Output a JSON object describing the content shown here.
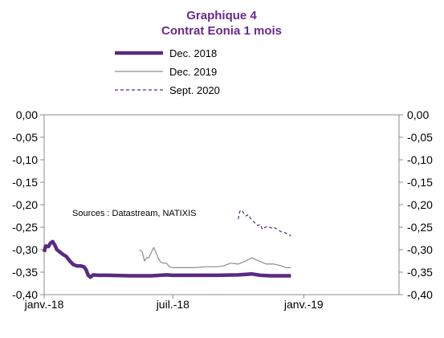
{
  "chart_data": {
    "type": "line",
    "title": "Graphique 4",
    "subtitle": "Contrat Eonia 1 mois",
    "source": "Sources : Datastream,  NATIXIS",
    "title_color": "#6a2a8c",
    "ylim": [
      -0.4,
      0.0
    ],
    "y_ticks": [
      "0,00",
      "-0,05",
      "-0,10",
      "-0,15",
      "-0,20",
      "-0,25",
      "-0,30",
      "-0,35",
      "-0,40"
    ],
    "y_tick_values": [
      0.0,
      -0.05,
      -0.1,
      -0.15,
      -0.2,
      -0.25,
      -0.3,
      -0.35,
      -0.4
    ],
    "xlim": [
      "2018-01-01",
      "2019-05-15"
    ],
    "x_ticks": [
      "janv.-18",
      "juil.-18",
      "janv.-19"
    ],
    "x_tick_values": [
      "2018-01-01",
      "2018-07-01",
      "2019-01-01"
    ],
    "grid": false,
    "legend_position": "top-center",
    "series": [
      {
        "name": "Dec. 2018",
        "color": "#5b2a80",
        "style": "thick",
        "points": [
          [
            "2018-01-01",
            -0.305
          ],
          [
            "2018-01-03",
            -0.292
          ],
          [
            "2018-01-07",
            -0.293
          ],
          [
            "2018-01-10",
            -0.285
          ],
          [
            "2018-01-13",
            -0.282
          ],
          [
            "2018-01-16",
            -0.29
          ],
          [
            "2018-01-19",
            -0.3
          ],
          [
            "2018-01-23",
            -0.305
          ],
          [
            "2018-01-27",
            -0.31
          ],
          [
            "2018-02-01",
            -0.315
          ],
          [
            "2018-02-06",
            -0.325
          ],
          [
            "2018-02-11",
            -0.333
          ],
          [
            "2018-02-16",
            -0.336
          ],
          [
            "2018-02-21",
            -0.336
          ],
          [
            "2018-02-26",
            -0.338
          ],
          [
            "2018-03-01",
            -0.345
          ],
          [
            "2018-03-04",
            -0.357
          ],
          [
            "2018-03-07",
            -0.361
          ],
          [
            "2018-03-11",
            -0.356
          ],
          [
            "2018-03-18",
            -0.357
          ],
          [
            "2018-04-01",
            -0.357
          ],
          [
            "2018-05-01",
            -0.358
          ],
          [
            "2018-06-01",
            -0.358
          ],
          [
            "2018-06-22",
            -0.356
          ],
          [
            "2018-07-01",
            -0.357
          ],
          [
            "2018-08-01",
            -0.357
          ],
          [
            "2018-09-01",
            -0.357
          ],
          [
            "2018-10-01",
            -0.356
          ],
          [
            "2018-10-20",
            -0.354
          ],
          [
            "2018-11-01",
            -0.357
          ],
          [
            "2018-11-15",
            -0.358
          ],
          [
            "2018-12-01",
            -0.358
          ],
          [
            "2018-12-14",
            -0.358
          ]
        ]
      },
      {
        "name": "Dec. 2019",
        "color": "#8c8c8c",
        "style": "thin",
        "points": [
          [
            "2018-05-15",
            -0.3
          ],
          [
            "2018-05-19",
            -0.305
          ],
          [
            "2018-05-22",
            -0.325
          ],
          [
            "2018-05-25",
            -0.318
          ],
          [
            "2018-05-28",
            -0.318
          ],
          [
            "2018-06-01",
            -0.305
          ],
          [
            "2018-06-04",
            -0.295
          ],
          [
            "2018-06-07",
            -0.305
          ],
          [
            "2018-06-10",
            -0.318
          ],
          [
            "2018-06-14",
            -0.328
          ],
          [
            "2018-06-18",
            -0.33
          ],
          [
            "2018-06-22",
            -0.33
          ],
          [
            "2018-06-26",
            -0.338
          ],
          [
            "2018-07-01",
            -0.34
          ],
          [
            "2018-07-15",
            -0.34
          ],
          [
            "2018-08-01",
            -0.34
          ],
          [
            "2018-08-15",
            -0.338
          ],
          [
            "2018-09-01",
            -0.338
          ],
          [
            "2018-09-10",
            -0.336
          ],
          [
            "2018-09-20",
            -0.33
          ],
          [
            "2018-10-01",
            -0.332
          ],
          [
            "2018-10-10",
            -0.326
          ],
          [
            "2018-10-20",
            -0.318
          ],
          [
            "2018-10-27",
            -0.323
          ],
          [
            "2018-11-03",
            -0.328
          ],
          [
            "2018-11-10",
            -0.332
          ],
          [
            "2018-11-20",
            -0.332
          ],
          [
            "2018-12-01",
            -0.336
          ],
          [
            "2018-12-07",
            -0.34
          ],
          [
            "2018-12-14",
            -0.34
          ]
        ]
      },
      {
        "name": "Sept. 2020",
        "color": "#5b2a80",
        "style": "dashed",
        "points": [
          [
            "2018-10-01",
            -0.232
          ],
          [
            "2018-10-03",
            -0.215
          ],
          [
            "2018-10-06",
            -0.212
          ],
          [
            "2018-10-09",
            -0.22
          ],
          [
            "2018-10-12",
            -0.225
          ],
          [
            "2018-10-15",
            -0.222
          ],
          [
            "2018-10-18",
            -0.23
          ],
          [
            "2018-10-22",
            -0.236
          ],
          [
            "2018-10-25",
            -0.242
          ],
          [
            "2018-10-28",
            -0.246
          ],
          [
            "2018-11-01",
            -0.244
          ],
          [
            "2018-11-04",
            -0.255
          ],
          [
            "2018-11-08",
            -0.25
          ],
          [
            "2018-11-12",
            -0.248
          ],
          [
            "2018-11-16",
            -0.252
          ],
          [
            "2018-11-20",
            -0.25
          ],
          [
            "2018-11-25",
            -0.255
          ],
          [
            "2018-11-30",
            -0.26
          ],
          [
            "2018-12-05",
            -0.262
          ],
          [
            "2018-12-10",
            -0.265
          ],
          [
            "2018-12-14",
            -0.27
          ]
        ]
      }
    ]
  }
}
